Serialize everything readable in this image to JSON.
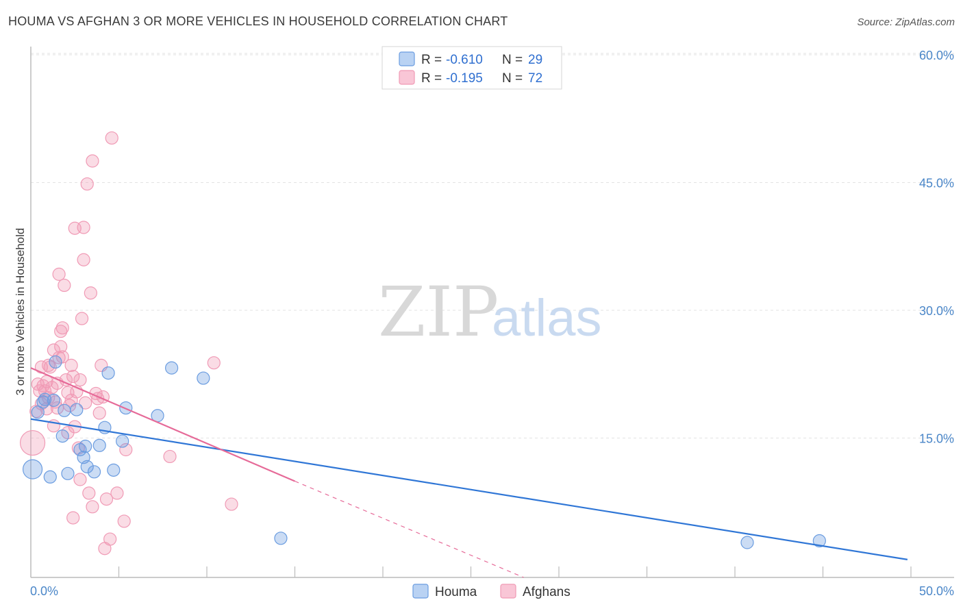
{
  "title": "HOUMA VS AFGHAN 3 OR MORE VEHICLES IN HOUSEHOLD CORRELATION CHART",
  "source": "Source: ZipAtlas.com",
  "watermark": {
    "zip": "ZIP",
    "atlas": "atlas"
  },
  "legend": {
    "houma": {
      "r_label": "R =",
      "r_value": "-0.610",
      "n_label": "N =",
      "n_value": "29"
    },
    "afghans": {
      "r_label": "R =",
      "r_value": "-0.195",
      "n_label": "N =",
      "n_value": "72"
    }
  },
  "bottom_legend": {
    "houma": "Houma",
    "afghans": "Afghans"
  },
  "chart_data": {
    "type": "scatter",
    "title": "HOUMA VS AFGHAN 3 OR MORE VEHICLES IN HOUSEHOLD CORRELATION CHART",
    "xlabel": "",
    "ylabel": "3 or more Vehicles in Household",
    "xlim": [
      0,
      50
    ],
    "ylim": [
      0,
      63
    ],
    "x_tick_labels": [
      "0.0%",
      "50.0%"
    ],
    "y_ticks": [
      15,
      30,
      45,
      60
    ],
    "y_tick_labels": [
      "15.0%",
      "30.0%",
      "45.0%",
      "60.0%"
    ],
    "colors": {
      "houma": "#6a9ce0",
      "afghans": "#f09ab5",
      "houma_line": "#2f76d6",
      "afghans_line": "#e66a98"
    },
    "series": [
      {
        "name": "Houma",
        "points": [
          [
            0.1,
            12.7,
            14
          ],
          [
            0.4,
            19.4,
            9
          ],
          [
            0.7,
            20.6,
            9
          ],
          [
            0.8,
            20.9,
            9
          ],
          [
            1.1,
            11.8,
            9
          ],
          [
            1.3,
            20.8,
            9
          ],
          [
            1.4,
            25.3,
            9
          ],
          [
            1.8,
            16.6,
            9
          ],
          [
            1.9,
            19.6,
            9
          ],
          [
            2.1,
            12.2,
            9
          ],
          [
            2.6,
            19.7,
            9
          ],
          [
            2.8,
            15.0,
            9
          ],
          [
            3.0,
            14.1,
            9
          ],
          [
            3.1,
            15.4,
            9
          ],
          [
            3.2,
            13.0,
            9
          ],
          [
            3.6,
            12.4,
            9
          ],
          [
            3.9,
            15.5,
            9
          ],
          [
            4.2,
            17.6,
            9
          ],
          [
            4.4,
            24.0,
            9
          ],
          [
            4.7,
            12.6,
            9
          ],
          [
            5.2,
            16.0,
            9
          ],
          [
            5.4,
            19.9,
            9
          ],
          [
            7.2,
            19.0,
            9
          ],
          [
            8.0,
            24.6,
            9
          ],
          [
            9.8,
            23.4,
            9
          ],
          [
            14.2,
            4.6,
            9
          ],
          [
            40.7,
            4.1,
            9
          ],
          [
            44.8,
            4.3,
            9
          ]
        ],
        "trendline": {
          "x": [
            0,
            49.8
          ],
          "y": [
            18.6,
            2.1
          ]
        }
      },
      {
        "name": "Afghans",
        "points": [
          [
            0.1,
            15.8,
            18
          ],
          [
            0.3,
            19.5,
            9
          ],
          [
            0.4,
            22.7,
            9
          ],
          [
            0.5,
            21.9,
            9
          ],
          [
            0.6,
            24.7,
            9
          ],
          [
            0.6,
            20.4,
            9
          ],
          [
            0.7,
            22.5,
            9
          ],
          [
            0.8,
            21.9,
            9
          ],
          [
            0.9,
            19.8,
            9
          ],
          [
            0.9,
            23.0,
            9
          ],
          [
            1.0,
            24.9,
            9
          ],
          [
            1.0,
            21.1,
            9
          ],
          [
            1.1,
            24.7,
            9
          ],
          [
            1.2,
            22.3,
            9
          ],
          [
            1.3,
            17.8,
            9
          ],
          [
            1.3,
            26.7,
            9
          ],
          [
            1.4,
            20.6,
            9
          ],
          [
            1.5,
            22.8,
            9
          ],
          [
            1.5,
            19.9,
            9
          ],
          [
            1.6,
            25.8,
            9
          ],
          [
            1.6,
            35.6,
            9
          ],
          [
            1.7,
            27.1,
            9
          ],
          [
            1.7,
            28.9,
            9
          ],
          [
            1.8,
            25.9,
            9
          ],
          [
            1.8,
            29.3,
            9
          ],
          [
            1.9,
            34.3,
            9
          ],
          [
            2.0,
            23.2,
            9
          ],
          [
            2.1,
            21.7,
            9
          ],
          [
            2.1,
            17.0,
            9
          ],
          [
            2.2,
            20.2,
            9
          ],
          [
            2.3,
            24.9,
            9
          ],
          [
            2.3,
            20.8,
            9
          ],
          [
            2.4,
            7.0,
            9
          ],
          [
            2.4,
            23.6,
            9
          ],
          [
            2.5,
            41.0,
            9
          ],
          [
            2.5,
            17.7,
            9
          ],
          [
            2.6,
            21.8,
            9
          ],
          [
            2.7,
            15.2,
            9
          ],
          [
            2.8,
            11.5,
            9
          ],
          [
            2.8,
            23.2,
            9
          ],
          [
            2.9,
            30.4,
            9
          ],
          [
            3.0,
            37.3,
            9
          ],
          [
            3.0,
            41.1,
            9
          ],
          [
            3.1,
            20.5,
            9
          ],
          [
            3.2,
            46.2,
            9
          ],
          [
            3.3,
            9.9,
            9
          ],
          [
            3.4,
            33.4,
            9
          ],
          [
            3.5,
            48.9,
            9
          ],
          [
            3.5,
            8.3,
            9
          ],
          [
            3.7,
            21.6,
            9
          ],
          [
            3.8,
            21.0,
            9
          ],
          [
            3.9,
            19.3,
            9
          ],
          [
            4.0,
            24.9,
            9
          ],
          [
            4.1,
            21.2,
            9
          ],
          [
            4.2,
            3.4,
            9
          ],
          [
            4.3,
            9.2,
            9
          ],
          [
            4.5,
            4.5,
            9
          ],
          [
            4.6,
            51.6,
            9
          ],
          [
            4.9,
            9.9,
            9
          ],
          [
            5.3,
            6.6,
            9
          ],
          [
            5.4,
            15.0,
            9
          ],
          [
            7.9,
            14.2,
            9
          ],
          [
            10.4,
            25.2,
            9
          ],
          [
            11.4,
            8.6,
            9
          ]
        ],
        "trendline": {
          "x": [
            0,
            15
          ],
          "y": [
            24.6,
            11.3
          ]
        },
        "trendline_extension": {
          "x": [
            15,
            28
          ],
          "y": [
            11.3,
            0
          ]
        }
      }
    ]
  }
}
